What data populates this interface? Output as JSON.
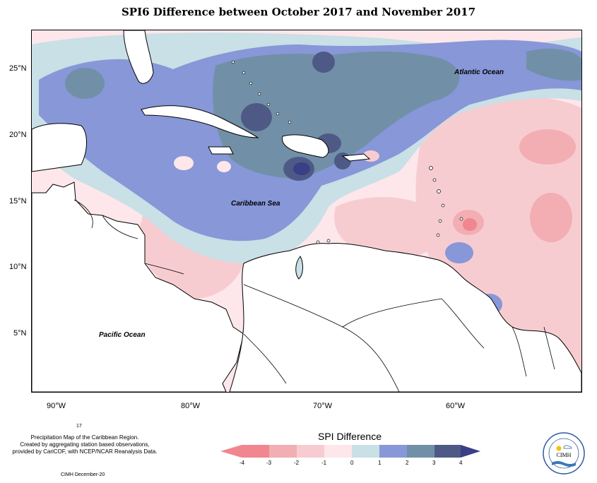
{
  "title": "SPI6 Difference between October 2017 and November 2017",
  "map": {
    "lat_labels": [
      "25°N",
      "20°N",
      "15°N",
      "10°N",
      "5°N"
    ],
    "lon_labels": [
      "90°W",
      "80°W",
      "70°W",
      "60°W"
    ],
    "labels": {
      "atlantic": "Atlantic Ocean",
      "caribbean": "Caribbean Sea",
      "pacific": "Pacific Ocean"
    }
  },
  "legend": {
    "title": "SPI Difference",
    "ticks": [
      "-4",
      "-3",
      "-2",
      "-1",
      "0",
      "1",
      "2",
      "3",
      "4"
    ],
    "colors": [
      "#f0868f",
      "#f2aeb3",
      "#f7ccd1",
      "#fde7ea",
      "#ffffff",
      "#c8e0e6",
      "#8797d8",
      "#7190a8",
      "#4e5a85",
      "#3a3f88"
    ]
  },
  "credits": {
    "marker": "17",
    "line1": "Precipitation Map of the Caribbean Region.",
    "line2": "Created by aggregating station based observations,",
    "line3": "provided by CariCOF, with NCEP/NCAR Reanalysis Data.",
    "footer": "CIMH December-20"
  },
  "logo": {
    "text": "CIMH"
  }
}
